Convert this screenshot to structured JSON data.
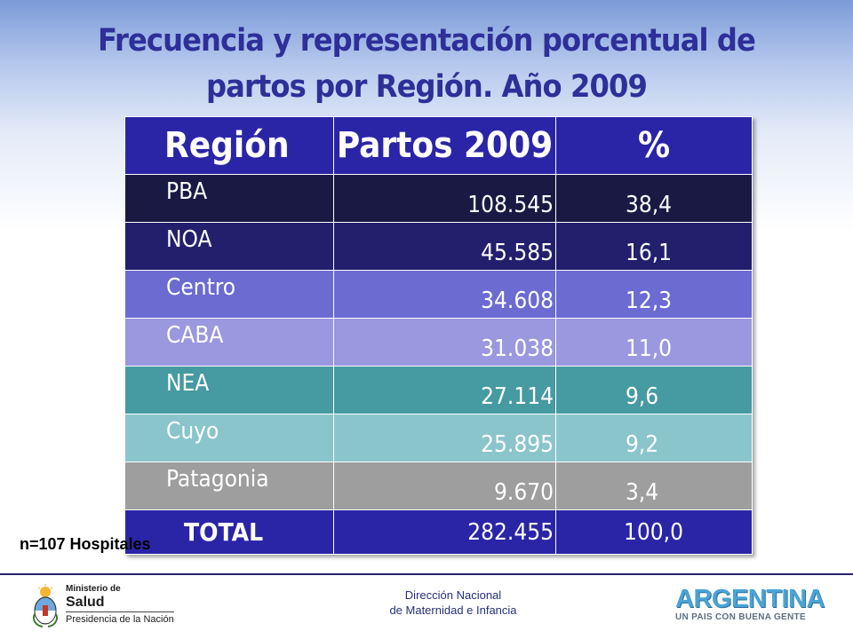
{
  "title": {
    "line1": "Frecuencia y representación porcentual de",
    "line2": "partos  por Región. Año 2009"
  },
  "table": {
    "headers": [
      "Región",
      "Partos 2009",
      "%"
    ],
    "rows": [
      {
        "region": "PBA",
        "partos": "108.545",
        "pct": "38,4"
      },
      {
        "region": "NOA",
        "partos": "45.585",
        "pct": "16,1"
      },
      {
        "region": "Centro",
        "partos": "34.608",
        "pct": "12,3"
      },
      {
        "region": "CABA",
        "partos": "31.038",
        "pct": "11,0"
      },
      {
        "region": "NEA",
        "partos": "27.114",
        "pct": "9,6"
      },
      {
        "region": "Cuyo",
        "partos": "25.895",
        "pct": "9,2"
      },
      {
        "region": "Patagonia",
        "partos": "9.670",
        "pct": "3,4"
      }
    ],
    "total": {
      "region": "TOTAL",
      "partos": "282.455",
      "pct": "100,0"
    },
    "colors": {
      "header": "#2a25a6",
      "PBA": "#1a1944",
      "NOA": "#221f6c",
      "Centro": "#6b6bd2",
      "CABA": "#9a98de",
      "NEA": "#469aa1",
      "Cuyo": "#8ac5cc",
      "Patagonia": "#9e9e9e",
      "total": "#2a25a6"
    }
  },
  "note": "n=107 Hospitales",
  "footer": {
    "center_line1": "Dirección Nacional",
    "center_line2": "de Maternidad e Infancia",
    "ministry_line1": "Ministerio de",
    "ministry_line2": "Salud",
    "ministry_line3": "Presidencia de la Nación",
    "brand": "ARGENTINA",
    "brand_tagline": "UN PAIS CON BUENA GENTE",
    "crest_icon": "coat-of-arms-icon"
  }
}
